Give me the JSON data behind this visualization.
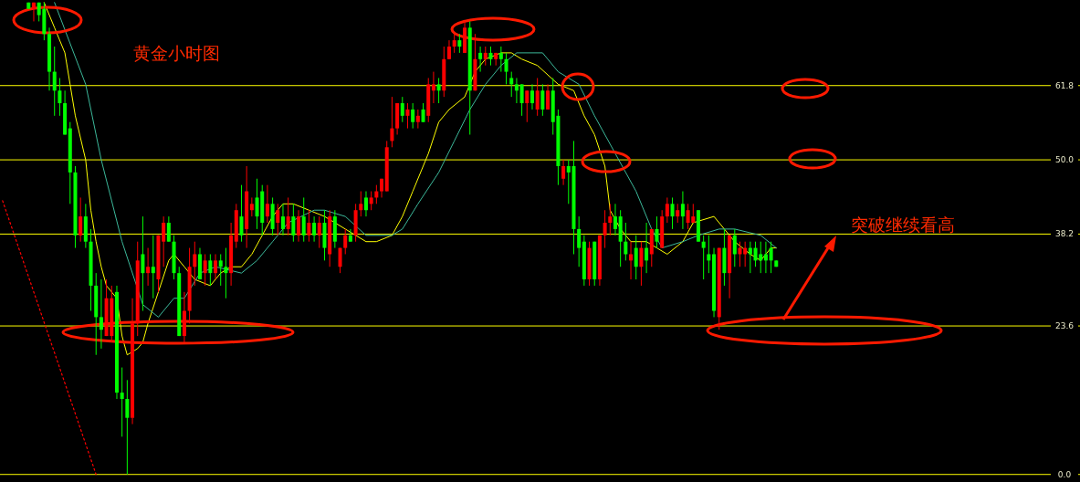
{
  "chart_data": {
    "type": "candlestick",
    "categories": [
      null,
      null,
      null,
      null,
      null,
      null,
      null,
      null,
      null,
      null,
      null,
      null,
      null,
      null,
      null,
      null,
      null,
      null,
      null,
      null,
      null,
      null,
      null,
      null,
      null,
      null,
      null,
      null,
      null,
      null,
      null,
      null,
      null,
      null,
      null,
      null,
      null,
      null,
      null,
      null,
      null,
      null,
      null,
      null,
      null,
      null,
      null,
      null,
      null,
      null,
      null,
      null,
      null,
      null,
      null,
      null,
      null,
      null,
      null,
      null,
      null,
      null,
      null,
      null,
      null,
      null,
      null,
      null,
      null,
      null,
      null,
      null,
      null,
      null,
      null,
      null,
      null,
      null,
      null,
      null,
      null,
      null,
      null,
      null,
      null,
      null,
      null,
      null,
      null,
      null,
      null,
      null,
      null,
      null,
      null,
      null,
      null,
      null,
      null,
      null,
      null,
      null,
      null,
      null,
      null,
      null,
      null,
      null,
      null,
      null,
      null,
      null,
      null,
      null,
      null,
      null,
      null,
      null,
      null,
      null,
      null,
      null,
      null,
      null,
      null,
      null,
      null,
      null,
      null,
      null,
      null,
      null,
      null,
      null,
      null,
      null,
      null,
      null,
      null,
      null,
      null,
      null,
      null,
      null,
      null,
      null,
      null,
      null,
      null,
      null,
      null,
      null,
      null,
      null,
      null,
      null,
      null,
      null,
      null,
      null,
      null,
      null,
      null,
      null,
      null,
      null,
      null,
      null,
      null,
      null,
      null,
      null,
      null,
      null,
      null,
      null,
      null,
      null,
      null,
      null,
      null,
      null,
      null,
      null,
      null,
      null,
      null,
      null,
      null,
      null,
      null,
      null,
      null,
      null,
      null,
      null,
      null,
      null,
      null,
      null,
      null,
      null,
      null,
      null,
      null,
      null,
      null,
      null
    ],
    "ohlc": [
      null,
      null,
      null,
      null,
      null,
      [
        75,
        75,
        74,
        74
      ],
      [
        74,
        75,
        72,
        75
      ],
      [
        75,
        75,
        72,
        73
      ],
      [
        74,
        75,
        69,
        70
      ],
      [
        70,
        71,
        61,
        64
      ],
      [
        64,
        68,
        57,
        61
      ],
      [
        61,
        63,
        57,
        59
      ],
      [
        59,
        61,
        54,
        54
      ],
      [
        55,
        56,
        43,
        48
      ],
      [
        48,
        49,
        36,
        38
      ],
      [
        38,
        44,
        37,
        41
      ],
      [
        41,
        43,
        36,
        37
      ],
      [
        37,
        39,
        26,
        30
      ],
      [
        30,
        32,
        19,
        25
      ],
      [
        25,
        31,
        20,
        23
      ],
      [
        22,
        31,
        22,
        28
      ],
      [
        22,
        30,
        21,
        28
      ],
      [
        29,
        30,
        12,
        13
      ],
      [
        13,
        17,
        6,
        12
      ],
      [
        12,
        15,
        0,
        9
      ],
      [
        9,
        28,
        8,
        24
      ],
      [
        24,
        37,
        22,
        34
      ],
      [
        35,
        41,
        26,
        32
      ],
      [
        32,
        36,
        30,
        33
      ],
      [
        33,
        38,
        28,
        32
      ],
      [
        31,
        38,
        29,
        38
      ],
      [
        37,
        41,
        33,
        40
      ],
      [
        40,
        41,
        37,
        37
      ],
      [
        37,
        38,
        31,
        32
      ],
      [
        32,
        33,
        22,
        22
      ],
      [
        22,
        29,
        21,
        26
      ],
      [
        26,
        36,
        24,
        33
      ],
      [
        33,
        37,
        30,
        35
      ],
      [
        35,
        36,
        31,
        31
      ],
      [
        32,
        35,
        30,
        34
      ],
      [
        34,
        35,
        30,
        32
      ],
      [
        32,
        35,
        31,
        34
      ],
      [
        34,
        35,
        30,
        33
      ],
      [
        33,
        36,
        28,
        32
      ],
      [
        32,
        40,
        30,
        38
      ],
      [
        37,
        43,
        36,
        42
      ],
      [
        41,
        46,
        37,
        38
      ],
      [
        39,
        49,
        36,
        45
      ],
      [
        42,
        44,
        41,
        43
      ],
      [
        44,
        47,
        39,
        41
      ],
      [
        45,
        46,
        38,
        40
      ],
      [
        41,
        46,
        40,
        43
      ],
      [
        43,
        44,
        38,
        39
      ],
      [
        40,
        43,
        38,
        42
      ],
      [
        41,
        43,
        38,
        39
      ],
      [
        39,
        44,
        38,
        41
      ],
      [
        41,
        43,
        37,
        38
      ],
      [
        38,
        42,
        37,
        41
      ],
      [
        41,
        44,
        37,
        38
      ],
      [
        38,
        42,
        37,
        40
      ],
      [
        40,
        41,
        37,
        38
      ],
      [
        38,
        41,
        36,
        40
      ],
      [
        40,
        42,
        34,
        36
      ],
      [
        35,
        42,
        33,
        41
      ],
      [
        41,
        42,
        36,
        37
      ],
      [
        33,
        36,
        32,
        36
      ],
      [
        36,
        39,
        35,
        38
      ],
      [
        38,
        39,
        37,
        37
      ],
      [
        38,
        43,
        37,
        42
      ],
      [
        42,
        45,
        41,
        43
      ],
      [
        44,
        45,
        41,
        42
      ],
      [
        43,
        45,
        42,
        44
      ],
      [
        44,
        46,
        43,
        45
      ],
      [
        45,
        47,
        44,
        47
      ],
      [
        45,
        53,
        45,
        52
      ],
      [
        53,
        60,
        52,
        55
      ],
      [
        55,
        59,
        54,
        59
      ],
      [
        59,
        60,
        56,
        57
      ],
      [
        57,
        59,
        55,
        58
      ],
      [
        58,
        59,
        55,
        56
      ],
      [
        56,
        58,
        55,
        57
      ],
      [
        58,
        59,
        56,
        56
      ],
      [
        57,
        63,
        56,
        62
      ],
      [
        61,
        64,
        59,
        62
      ],
      [
        62,
        63,
        59,
        61
      ],
      [
        61,
        68,
        60,
        66
      ],
      [
        66,
        69,
        66,
        68
      ],
      [
        68,
        70,
        67,
        69
      ],
      [
        69,
        70,
        67,
        68
      ],
      [
        67,
        72,
        67,
        71
      ],
      [
        71,
        72,
        54,
        61
      ],
      [
        61,
        70,
        61,
        66
      ],
      [
        67,
        68,
        64,
        66
      ],
      [
        66,
        68,
        65,
        67
      ],
      [
        67,
        68,
        65,
        66
      ],
      [
        66,
        67,
        65,
        67
      ],
      [
        67,
        68,
        64,
        66
      ],
      [
        66,
        67,
        62,
        64
      ],
      [
        63,
        64,
        60,
        62
      ],
      [
        62,
        63,
        59,
        61
      ],
      [
        62,
        62,
        57,
        59
      ],
      [
        59,
        61,
        56,
        61
      ],
      [
        61,
        62,
        58,
        59
      ],
      [
        58,
        63,
        57,
        61
      ],
      [
        61,
        62,
        57,
        58
      ],
      [
        58,
        62,
        58,
        61
      ],
      [
        61,
        63,
        54,
        56
      ],
      [
        57,
        58,
        46,
        49
      ],
      [
        47,
        50,
        46,
        49
      ],
      [
        49,
        50,
        43,
        48
      ],
      [
        49,
        53,
        35,
        39
      ],
      [
        39,
        41,
        33,
        36
      ],
      [
        37,
        38,
        30,
        31
      ],
      [
        31,
        37,
        30,
        36
      ],
      [
        37,
        37,
        30,
        31
      ],
      [
        31,
        38,
        30,
        38
      ],
      [
        38,
        42,
        36,
        40
      ],
      [
        40,
        43,
        38,
        41
      ],
      [
        41,
        43,
        38,
        39
      ],
      [
        41,
        42,
        33,
        37
      ],
      [
        37,
        40,
        34,
        35
      ],
      [
        34,
        37,
        31,
        35
      ],
      [
        36,
        38,
        31,
        33
      ],
      [
        33,
        37,
        30,
        36
      ],
      [
        36,
        40,
        32,
        34
      ],
      [
        35,
        39,
        33,
        39
      ],
      [
        39,
        41,
        36,
        37
      ],
      [
        36,
        42,
        36,
        41
      ],
      [
        41,
        44,
        40,
        43
      ],
      [
        43,
        44,
        39,
        41
      ],
      [
        41,
        43,
        40,
        42
      ],
      [
        43,
        45,
        39,
        41
      ],
      [
        40,
        43,
        39,
        42
      ],
      [
        40,
        43,
        40,
        41
      ],
      [
        42,
        42,
        37,
        37
      ],
      [
        37,
        38,
        31,
        36
      ],
      [
        35,
        38,
        32,
        34
      ],
      [
        35,
        36,
        25,
        26
      ],
      [
        25,
        36,
        23,
        36
      ],
      [
        36,
        39,
        30,
        32
      ],
      [
        32,
        38,
        28,
        38
      ],
      [
        38,
        39,
        33,
        35
      ],
      [
        35,
        37,
        33,
        36
      ],
      [
        35,
        37,
        33,
        36
      ],
      [
        36,
        37,
        32,
        35
      ],
      [
        36,
        37,
        33,
        34
      ],
      [
        35,
        37,
        32,
        34
      ],
      [
        35,
        37,
        32,
        34
      ],
      [
        36,
        37,
        32,
        34
      ],
      [
        34,
        34,
        33,
        33
      ],
      null,
      null,
      null,
      null,
      null,
      null,
      null,
      null,
      null,
      null,
      null,
      null,
      null,
      null,
      null,
      null,
      null,
      null,
      null,
      null,
      null,
      null,
      null,
      null,
      null,
      null,
      null,
      null,
      null,
      null,
      null,
      null,
      null,
      null,
      null,
      null,
      null,
      null,
      null,
      null,
      null,
      null,
      null,
      null,
      null,
      null,
      null,
      null,
      null,
      null,
      null,
      null,
      null,
      null,
      null,
      null,
      null,
      null
    ],
    "colors": [
      null,
      null,
      null,
      null,
      null,
      "#00ff00",
      "#ff0000",
      "#00ff00",
      "#00ff00",
      "#00ff00",
      "#00ff00",
      "#00ff00",
      "#00ff00",
      "#00ff00",
      "#00ff00",
      "#ff0000",
      "#00ff00",
      "#00ff00",
      "#00ff00",
      "#00ff00",
      "#ff0000",
      "#ff0000",
      "#00ff00",
      "#00ff00",
      "#00ff00",
      "#ff0000",
      "#ff0000",
      "#00ff00",
      "#ff0000",
      "#00ff00",
      "#ff0000",
      "#ff0000",
      "#00ff00",
      "#00ff00",
      "#00ff00",
      "#ff0000",
      "#ff0000",
      "#ff0000",
      "#00ff00",
      "#ff0000",
      "#00ff00",
      "#ff0000",
      "#00ff00",
      "#00ff00",
      "#ff0000",
      "#ff0000",
      "#00ff00",
      "#ff0000",
      "#ff0000",
      "#00ff00",
      "#00ff00",
      "#ff0000",
      "#00ff00",
      "#ff0000",
      "#00ff00",
      "#ff0000",
      "#00ff00",
      "#ff0000",
      "#00ff00",
      "#ff0000",
      "#00ff00",
      "#ff0000",
      "#00ff00",
      "#ff0000",
      "#00ff00",
      "#ff0000",
      "#ff0000",
      "#00ff00",
      "#ff0000",
      "#ff0000",
      "#00ff00",
      "#ff0000",
      "#ff0000",
      "#ff0000",
      "#ff0000",
      "#ff0000",
      "#ff0000",
      "#00ff00",
      "#ff0000",
      "#00ff00",
      "#ff0000",
      "#00ff00",
      "#ff0000",
      "#ff0000",
      "#00ff00",
      "#ff0000",
      "#ff0000",
      "#ff0000",
      "#00ff00",
      "#ff0000",
      "#00ff00",
      "#ff0000",
      "#00ff00",
      "#ff0000",
      "#00ff00",
      "#ff0000",
      "#00ff00",
      "#00ff00",
      "#00ff00",
      "#00ff00",
      "#00ff00",
      "#ff0000",
      "#00ff00",
      "#ff0000",
      "#00ff00",
      "#ff0000",
      "#00ff00",
      "#00ff00",
      "#ff0000",
      "#00ff00",
      "#00ff00",
      "#00ff00",
      "#00ff00",
      "#ff0000",
      "#00ff00",
      "#ff0000",
      "#ff0000",
      "#ff0000",
      "#00ff00",
      "#00ff00",
      "#00ff00",
      "#ff0000",
      "#00ff00",
      "#ff0000",
      "#00ff00",
      "#ff0000",
      "#00ff00",
      "#ff0000",
      "#ff0000",
      "#00ff00",
      "#ff0000",
      "#00ff00",
      "#ff0000",
      "#ff0000",
      "#00ff00",
      "#00ff00",
      "#00ff00",
      "#00ff00",
      "#ff0000",
      "#00ff00",
      "#ff0000",
      "#00ff00",
      "#ff0000",
      "#ff0000",
      "#00ff00",
      "#00ff00",
      "#00ff00",
      "#00ff00",
      "#00ff00",
      "#00ff00",
      null,
      null,
      null,
      null,
      null,
      null,
      null,
      null,
      null,
      null,
      null,
      null,
      null,
      null,
      null,
      null,
      null,
      null,
      null,
      null,
      null,
      null,
      null,
      null,
      null,
      null,
      null,
      null,
      null,
      null,
      null,
      null,
      null,
      null,
      null,
      null,
      null,
      null,
      null,
      null,
      null,
      null,
      null,
      null,
      null,
      null,
      null,
      null,
      null,
      null,
      null,
      null,
      null,
      null,
      null,
      null,
      null,
      null
    ],
    "series": [
      {
        "type": "line",
        "color": "#ffff00",
        "values": [
          null,
          null,
          null,
          null,
          null,
          null,
          null,
          null,
          75,
          null,
          71,
          null,
          67,
          62,
          57,
          null,
          50,
          42,
          37,
          33,
          30,
          null,
          28,
          22,
          19,
          null,
          20,
          21,
          24,
          null,
          29,
          null,
          34,
          35,
          null,
          33,
          null,
          31,
          null,
          null,
          30,
          null,
          32,
          null,
          33,
          null,
          33,
          null,
          35,
          null,
          38,
          null,
          41,
          null,
          43,
          null,
          43,
          null,
          null,
          42,
          null,
          null,
          41,
          null,
          null,
          null,
          39,
          null,
          null,
          null,
          37,
          null,
          37,
          null,
          null,
          38,
          null,
          41,
          null,
          45,
          null,
          null,
          51,
          null,
          56,
          null,
          58,
          null,
          null,
          60,
          null,
          64,
          null,
          66,
          null,
          null,
          67,
          null,
          67,
          null,
          66,
          null,
          null,
          65,
          null,
          null,
          null,
          62,
          null,
          null,
          61,
          null,
          57,
          null,
          54,
          null,
          49,
          42,
          null,
          39,
          null,
          37,
          null,
          null,
          37,
          null,
          36,
          null,
          35,
          null,
          null,
          37,
          null,
          40,
          null,
          null,
          null,
          41,
          null,
          39,
          null,
          37,
          null,
          null,
          35,
          null,
          34,
          null,
          36,
          36,
          null,
          null,
          null,
          null,
          null,
          null,
          null,
          null,
          null,
          null,
          null,
          null,
          null,
          null,
          null,
          null,
          null,
          null,
          null,
          null,
          null,
          null,
          null,
          null,
          null,
          null,
          null,
          null,
          null,
          null,
          null,
          null,
          null,
          null,
          null,
          null,
          null,
          null,
          null,
          null,
          null,
          null,
          null,
          null,
          null,
          null,
          null,
          null,
          null,
          null,
          null,
          null,
          null,
          null,
          null,
          null,
          null,
          null
        ]
      },
      {
        "type": "line",
        "color": "#3cb89a",
        "values": [
          null,
          null,
          null,
          null,
          null,
          null,
          null,
          null,
          null,
          null,
          75,
          null,
          null,
          null,
          null,
          null,
          62,
          null,
          null,
          50,
          null,
          null,
          null,
          37,
          null,
          null,
          null,
          27,
          null,
          null,
          25,
          null,
          null,
          28,
          null,
          28,
          null,
          null,
          32,
          null,
          null,
          33,
          null,
          null,
          null,
          null,
          32,
          null,
          null,
          34,
          null,
          null,
          37,
          null,
          null,
          40,
          null,
          null,
          null,
          null,
          42,
          null,
          42,
          null,
          null,
          null,
          41,
          null,
          null,
          null,
          38,
          null,
          null,
          null,
          null,
          38,
          null,
          39,
          null,
          null,
          43,
          null,
          null,
          null,
          48,
          null,
          null,
          53,
          null,
          null,
          58,
          null,
          null,
          62,
          null,
          null,
          65,
          null,
          null,
          67,
          null,
          null,
          null,
          null,
          67,
          null,
          null,
          64,
          null,
          null,
          null,
          62,
          null,
          null,
          57,
          null,
          null,
          null,
          51,
          null,
          null,
          null,
          45,
          null,
          null,
          39,
          null,
          36,
          null,
          null,
          null,
          37,
          null,
          null,
          38,
          null,
          null,
          null,
          39,
          null,
          null,
          39,
          null,
          null,
          null,
          null,
          38,
          null,
          null,
          36,
          null,
          null,
          null,
          null,
          null,
          null,
          null,
          null,
          null,
          null,
          null,
          null,
          null,
          null,
          null,
          null,
          null,
          null,
          null,
          null,
          null,
          null,
          null,
          null,
          null,
          null,
          null,
          null,
          null,
          null,
          null,
          null,
          null,
          null,
          null,
          null,
          null,
          null,
          null,
          null,
          null,
          null,
          null,
          null,
          null,
          null,
          null,
          null,
          null,
          null,
          null,
          null,
          null,
          null,
          null,
          null,
          null,
          null
        ]
      },
      {
        "type": "line",
        "color": "#ff0000",
        "line_style": "dotted",
        "values": [
          43.5,
          null,
          null,
          null,
          null,
          null,
          null,
          null,
          null,
          null,
          null,
          null,
          null,
          null,
          null,
          null,
          null,
          null,
          0,
          null,
          null,
          null,
          null,
          null,
          null,
          null,
          null,
          null,
          null,
          null,
          null,
          null,
          null,
          null,
          null,
          null,
          null,
          null,
          null,
          null,
          null,
          null,
          null,
          null,
          null,
          null,
          null,
          null,
          null,
          null,
          null,
          null,
          null,
          null,
          null,
          null,
          null,
          null,
          null,
          null,
          null,
          null,
          null,
          null,
          null,
          null,
          null,
          null,
          null,
          null,
          null,
          null,
          null,
          null,
          null,
          null,
          null,
          null,
          null,
          null,
          null,
          null,
          null,
          null,
          null,
          null,
          null,
          null,
          null,
          null,
          null,
          null,
          null,
          null,
          null,
          null,
          null,
          null,
          null,
          null,
          null,
          null,
          null,
          null,
          null,
          null,
          null,
          null,
          null,
          null,
          null,
          null,
          null,
          null,
          null,
          null,
          null,
          null,
          null,
          null,
          null,
          null,
          null,
          null,
          null,
          null,
          null,
          null,
          null,
          null,
          null,
          null,
          null,
          null,
          null,
          null,
          null,
          null,
          null,
          null,
          null,
          null,
          null,
          null,
          null,
          null,
          null,
          null,
          null,
          null,
          null,
          null,
          null,
          null,
          null,
          null,
          null,
          null,
          null,
          null,
          null,
          null,
          null,
          null,
          null,
          null,
          null,
          null,
          null,
          null,
          null,
          null,
          null,
          null,
          null,
          null,
          null,
          null,
          null,
          null,
          null,
          null,
          null,
          null,
          null,
          null,
          null,
          null,
          null,
          null,
          null,
          null,
          null,
          null,
          null,
          null,
          null,
          null,
          null,
          null,
          null,
          null,
          null,
          null,
          null,
          null,
          null,
          null
        ]
      }
    ],
    "ylim": [
      -1.2,
      75.4
    ],
    "yticks": [
      {
        "value": 0,
        "label": "0.0"
      },
      23.6,
      38.2,
      {
        "value": 50,
        "label": "50.0"
      },
      61.8
    ],
    "grid": "y",
    "tick_labels": "y",
    "annotations": [
      "黄金小时图",
      "突破继续看高"
    ]
  }
}
